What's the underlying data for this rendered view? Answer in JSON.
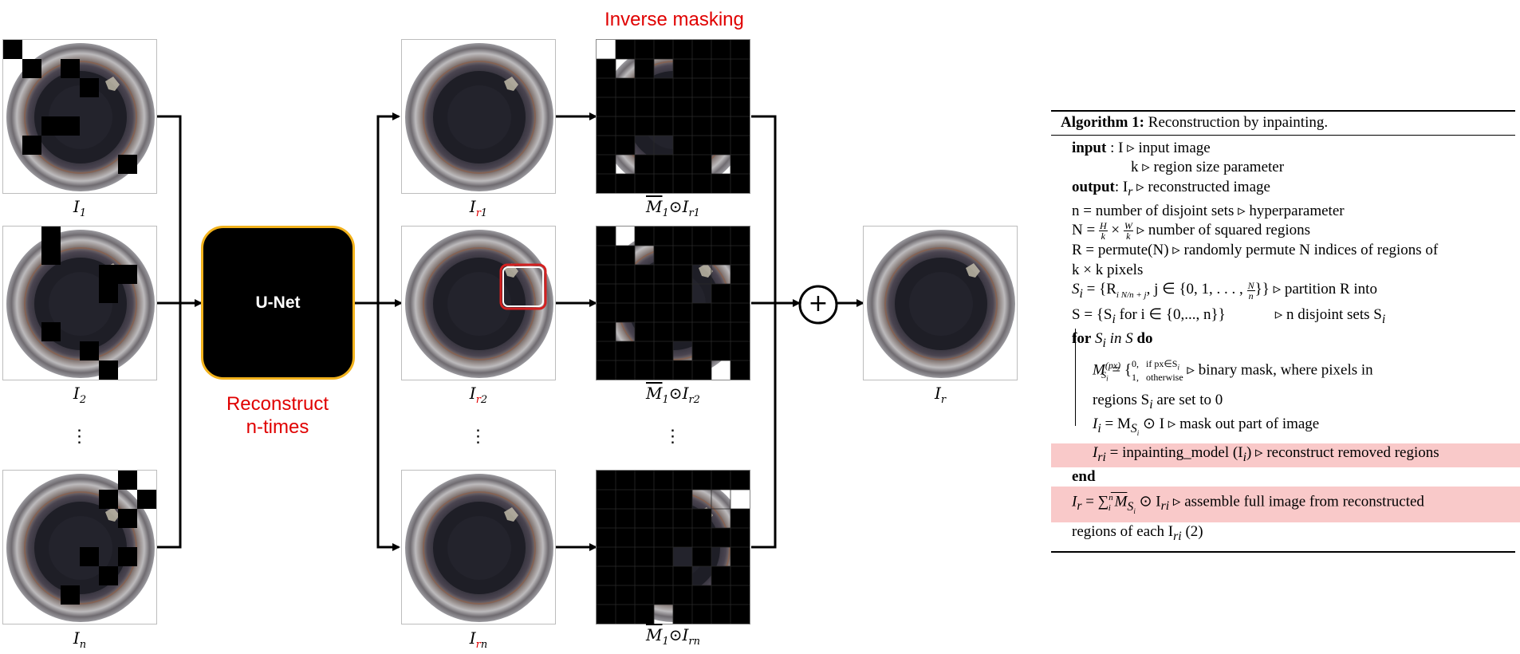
{
  "diagram": {
    "inputs": [
      {
        "label_main": "I",
        "label_sub": "1"
      },
      {
        "label_main": "I",
        "label_sub": "2"
      },
      {
        "label_main": "I",
        "label_sub": "n"
      }
    ],
    "unet_label": "U-Net",
    "reconstruct_label_line1": "Reconstruct",
    "reconstruct_label_line2": "n-times",
    "inverse_masking_label": "Inverse masking",
    "reconstructions": [
      {
        "label_main": "I",
        "label_r": "r",
        "label_sub": "1"
      },
      {
        "label_main": "I",
        "label_r": "r",
        "label_sub": "2"
      },
      {
        "label_main": "I",
        "label_r": "r",
        "label_sub": "n"
      }
    ],
    "masked": [
      {
        "m": "M",
        "m_sub": "1",
        "op": "⊙",
        "i": "I",
        "i_sub": "r1"
      },
      {
        "m": "M",
        "m_sub": "1",
        "op": "⊙",
        "i": "I",
        "i_sub": "r2"
      },
      {
        "m": "M",
        "m_sub": "1",
        "op": "⊙",
        "i": "I",
        "i_sub": "rn"
      }
    ],
    "ellipsis": "⋮",
    "sum_symbol": "+",
    "output": {
      "label_main": "I",
      "label_sub": "r"
    },
    "colors": {
      "accent_red": "#e00000",
      "unet_border": "#f2b21c",
      "highlight": "#f9c9c9"
    }
  },
  "algorithm": {
    "title_bold": "Algorithm 1:",
    "title_text": " Reconstruction by inpainting.",
    "input_kw": "input",
    "input_text": "  : I ▹ input image",
    "input_k": "k ▹ region size parameter",
    "output_kw": "output",
    "output_text": ": I",
    "output_sub": "r",
    "output_rest": " ▹ reconstructed image",
    "line_n": "n = number of disjoint sets ▹ hyperparameter",
    "line_N_pre": "N = ",
    "line_N_frac1_num": "H",
    "line_N_frac1_den": "k",
    "line_N_times": " × ",
    "line_N_frac2_num": "W",
    "line_N_frac2_den": "k",
    "line_N_post": " ▹ number of squared regions",
    "line_R1": "R = permute(N) ▹ randomly permute N indices of regions of",
    "line_R2": "k × k pixels",
    "line_Si_pre": "S",
    "line_Si_sub": "i",
    "line_Si_mid": " = {R",
    "line_Si_idx": "i N/n + j",
    "line_Si_set": ", j ∈ {0, 1, . . . , ",
    "line_Si_frac_num": "N",
    "line_Si_frac_den": "n",
    "line_Si_post": "}} ▹ partition R into",
    "line_S": "S = {S",
    "line_S_sub": "i",
    "line_S_mid": " for i ∈ {0,..., n}}",
    "line_S_comment": "▹ n disjoint sets S",
    "line_S_comment_sub": "i",
    "for_kw": "for",
    "for_mid": " S",
    "for_sub": "i",
    "for_in": " in S ",
    "do_kw": "do",
    "mask_lhs": "M",
    "mask_sup": "(px)",
    "mask_sub": "S",
    "mask_subsub": "i",
    "mask_eq": " = {",
    "mask_case1_val": "0,",
    "mask_case1_cond": "if px∈S",
    "mask_case1_cond_sub": "i",
    "mask_case2_val": "1,",
    "mask_case2_cond": "otherwise",
    "mask_comment": "▹ binary mask, where pixels in",
    "mask_comment2": "regions S",
    "mask_comment2_sub": "i",
    "mask_comment2_post": " are set to 0",
    "line_Ii": "I",
    "line_Ii_sub": "i",
    "line_Ii_mid": " = M",
    "line_Ii_msub": "S",
    "line_Ii_msubsub": "i",
    "line_Ii_post": " ⊙ I ▹ mask out part of image",
    "line_Iri": "I",
    "line_Iri_sub": "ri",
    "line_Iri_mid": " = inpainting_model (I",
    "line_Iri_isub": "i",
    "line_Iri_post": ") ▹ reconstruct removed regions",
    "end_kw": "end",
    "line_Ir": "I",
    "line_Ir_sub": "r",
    "line_Ir_eq": " = ∑",
    "line_Ir_sum_sub": "i",
    "line_Ir_sum_sup": "n",
    "line_Ir_m": " M",
    "line_Ir_msub": "S",
    "line_Ir_msubsub": "i",
    "line_Ir_post1": " ⊙ I",
    "line_Ir_isub": "ri",
    "line_Ir_post2": " ▹ assemble full image from reconstructed",
    "line_last": "regions of each I",
    "line_last_sub": "ri",
    "line_last_post": " (2)"
  }
}
